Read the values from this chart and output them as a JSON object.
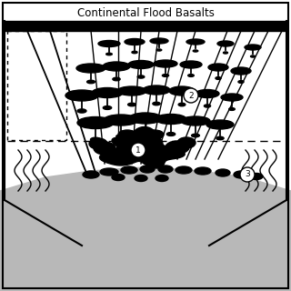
{
  "title": "Continental Flood Basalts",
  "bg_color": "#ffffff",
  "black": "#000000",
  "gray": "#b8b8b8",
  "fig_width": 3.2,
  "fig_height": 3.2,
  "dpi": 100,
  "label1": "1",
  "label2": "2",
  "label3": "3"
}
